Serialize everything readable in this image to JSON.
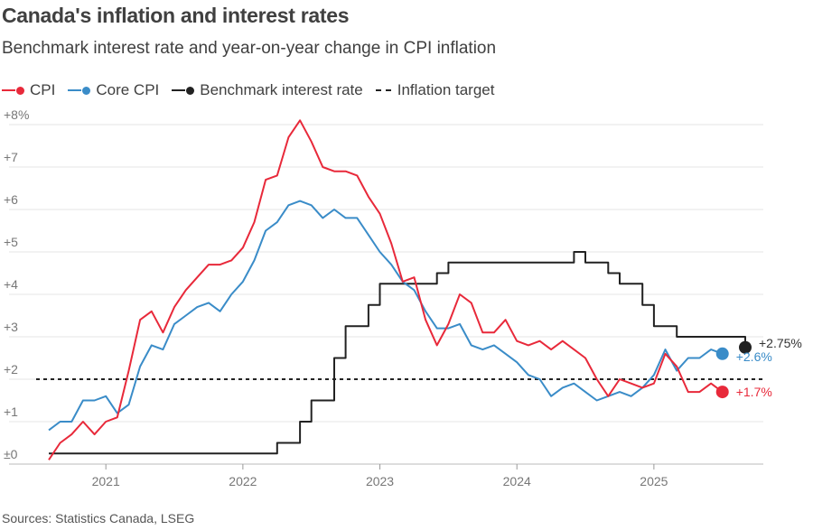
{
  "title": "Canada's inflation and interest rates",
  "subtitle": "Benchmark interest rate and year-on-year change in CPI inflation",
  "source": "Sources: Statistics Canada, LSEG",
  "legend": [
    {
      "label": "CPI",
      "color": "#e8293a",
      "style": "line-dot"
    },
    {
      "label": "Core CPI",
      "color": "#3a8cc8",
      "style": "line-dot"
    },
    {
      "label": "Benchmark interest rate",
      "color": "#222222",
      "style": "line-dot"
    },
    {
      "label": "Inflation target",
      "color": "#222222",
      "style": "dashed"
    }
  ],
  "chart_data": {
    "type": "line",
    "title": "Canada's inflation and interest rates",
    "subtitle": "Benchmark interest rate and year-on-year change in CPI inflation",
    "xlabel": "",
    "ylabel": "",
    "ylim": [
      0,
      8
    ],
    "xlim": [
      "2020-07",
      "2025-09"
    ],
    "x_ticks": [
      "2021",
      "2022",
      "2023",
      "2024",
      "2025"
    ],
    "y_ticks": [
      "±0",
      "+1",
      "+2",
      "+3",
      "+4",
      "+5",
      "+6",
      "+7",
      "+8%"
    ],
    "grid": true,
    "legend_position": "top-left",
    "target_line": {
      "name": "Inflation target",
      "value": 2
    },
    "series": [
      {
        "name": "CPI",
        "color": "#e8293a",
        "end_label": "+1.7%",
        "x": [
          "2020-08",
          "2020-09",
          "2020-10",
          "2020-11",
          "2020-12",
          "2021-01",
          "2021-02",
          "2021-03",
          "2021-04",
          "2021-05",
          "2021-06",
          "2021-07",
          "2021-08",
          "2021-09",
          "2021-10",
          "2021-11",
          "2021-12",
          "2022-01",
          "2022-02",
          "2022-03",
          "2022-04",
          "2022-05",
          "2022-06",
          "2022-07",
          "2022-08",
          "2022-09",
          "2022-10",
          "2022-11",
          "2022-12",
          "2023-01",
          "2023-02",
          "2023-03",
          "2023-04",
          "2023-05",
          "2023-06",
          "2023-07",
          "2023-08",
          "2023-09",
          "2023-10",
          "2023-11",
          "2023-12",
          "2024-01",
          "2024-02",
          "2024-03",
          "2024-04",
          "2024-05",
          "2024-06",
          "2024-07",
          "2024-08",
          "2024-09",
          "2024-10",
          "2024-11",
          "2024-12",
          "2025-01",
          "2025-02",
          "2025-03",
          "2025-04",
          "2025-05",
          "2025-06",
          "2025-07"
        ],
        "values": [
          0.1,
          0.5,
          0.7,
          1.0,
          0.7,
          1.0,
          1.1,
          2.2,
          3.4,
          3.6,
          3.1,
          3.7,
          4.1,
          4.4,
          4.7,
          4.7,
          4.8,
          5.1,
          5.7,
          6.7,
          6.8,
          7.7,
          8.1,
          7.6,
          7.0,
          6.9,
          6.9,
          6.8,
          6.3,
          5.9,
          5.2,
          4.3,
          4.4,
          3.4,
          2.8,
          3.3,
          4.0,
          3.8,
          3.1,
          3.1,
          3.4,
          2.9,
          2.8,
          2.9,
          2.7,
          2.9,
          2.7,
          2.5,
          2.0,
          1.6,
          2.0,
          1.9,
          1.8,
          1.9,
          2.6,
          2.3,
          1.7,
          1.7,
          1.9,
          1.7
        ]
      },
      {
        "name": "Core CPI",
        "color": "#3a8cc8",
        "end_label": "+2.6%",
        "x": [
          "2020-08",
          "2020-09",
          "2020-10",
          "2020-11",
          "2020-12",
          "2021-01",
          "2021-02",
          "2021-03",
          "2021-04",
          "2021-05",
          "2021-06",
          "2021-07",
          "2021-08",
          "2021-09",
          "2021-10",
          "2021-11",
          "2021-12",
          "2022-01",
          "2022-02",
          "2022-03",
          "2022-04",
          "2022-05",
          "2022-06",
          "2022-07",
          "2022-08",
          "2022-09",
          "2022-10",
          "2022-11",
          "2022-12",
          "2023-01",
          "2023-02",
          "2023-03",
          "2023-04",
          "2023-05",
          "2023-06",
          "2023-07",
          "2023-08",
          "2023-09",
          "2023-10",
          "2023-11",
          "2023-12",
          "2024-01",
          "2024-02",
          "2024-03",
          "2024-04",
          "2024-05",
          "2024-06",
          "2024-07",
          "2024-08",
          "2024-09",
          "2024-10",
          "2024-11",
          "2024-12",
          "2025-01",
          "2025-02",
          "2025-03",
          "2025-04",
          "2025-05",
          "2025-06",
          "2025-07"
        ],
        "values": [
          0.8,
          1.0,
          1.0,
          1.5,
          1.5,
          1.6,
          1.2,
          1.4,
          2.3,
          2.8,
          2.7,
          3.3,
          3.5,
          3.7,
          3.8,
          3.6,
          4.0,
          4.3,
          4.8,
          5.5,
          5.7,
          6.1,
          6.2,
          6.1,
          5.8,
          6.0,
          5.8,
          5.8,
          5.4,
          5.0,
          4.7,
          4.3,
          4.1,
          3.6,
          3.2,
          3.2,
          3.3,
          2.8,
          2.7,
          2.8,
          2.6,
          2.4,
          2.1,
          2.0,
          1.6,
          1.8,
          1.9,
          1.7,
          1.5,
          1.6,
          1.7,
          1.6,
          1.8,
          2.1,
          2.7,
          2.2,
          2.5,
          2.5,
          2.7,
          2.6
        ]
      },
      {
        "name": "Benchmark interest rate",
        "color": "#222222",
        "end_label": "+2.75%",
        "step": true,
        "x": [
          "2020-08",
          "2022-03",
          "2022-04",
          "2022-06",
          "2022-07",
          "2022-09",
          "2022-10",
          "2022-12",
          "2023-01",
          "2023-06",
          "2023-07",
          "2024-06",
          "2024-07",
          "2024-09",
          "2024-10",
          "2024-12",
          "2025-01",
          "2025-03",
          "2025-09"
        ],
        "values": [
          0.25,
          0.25,
          0.5,
          1.0,
          1.5,
          2.5,
          3.25,
          3.75,
          4.25,
          4.5,
          4.75,
          5.0,
          4.75,
          4.5,
          4.25,
          3.75,
          3.25,
          3.0,
          2.75
        ]
      }
    ]
  }
}
